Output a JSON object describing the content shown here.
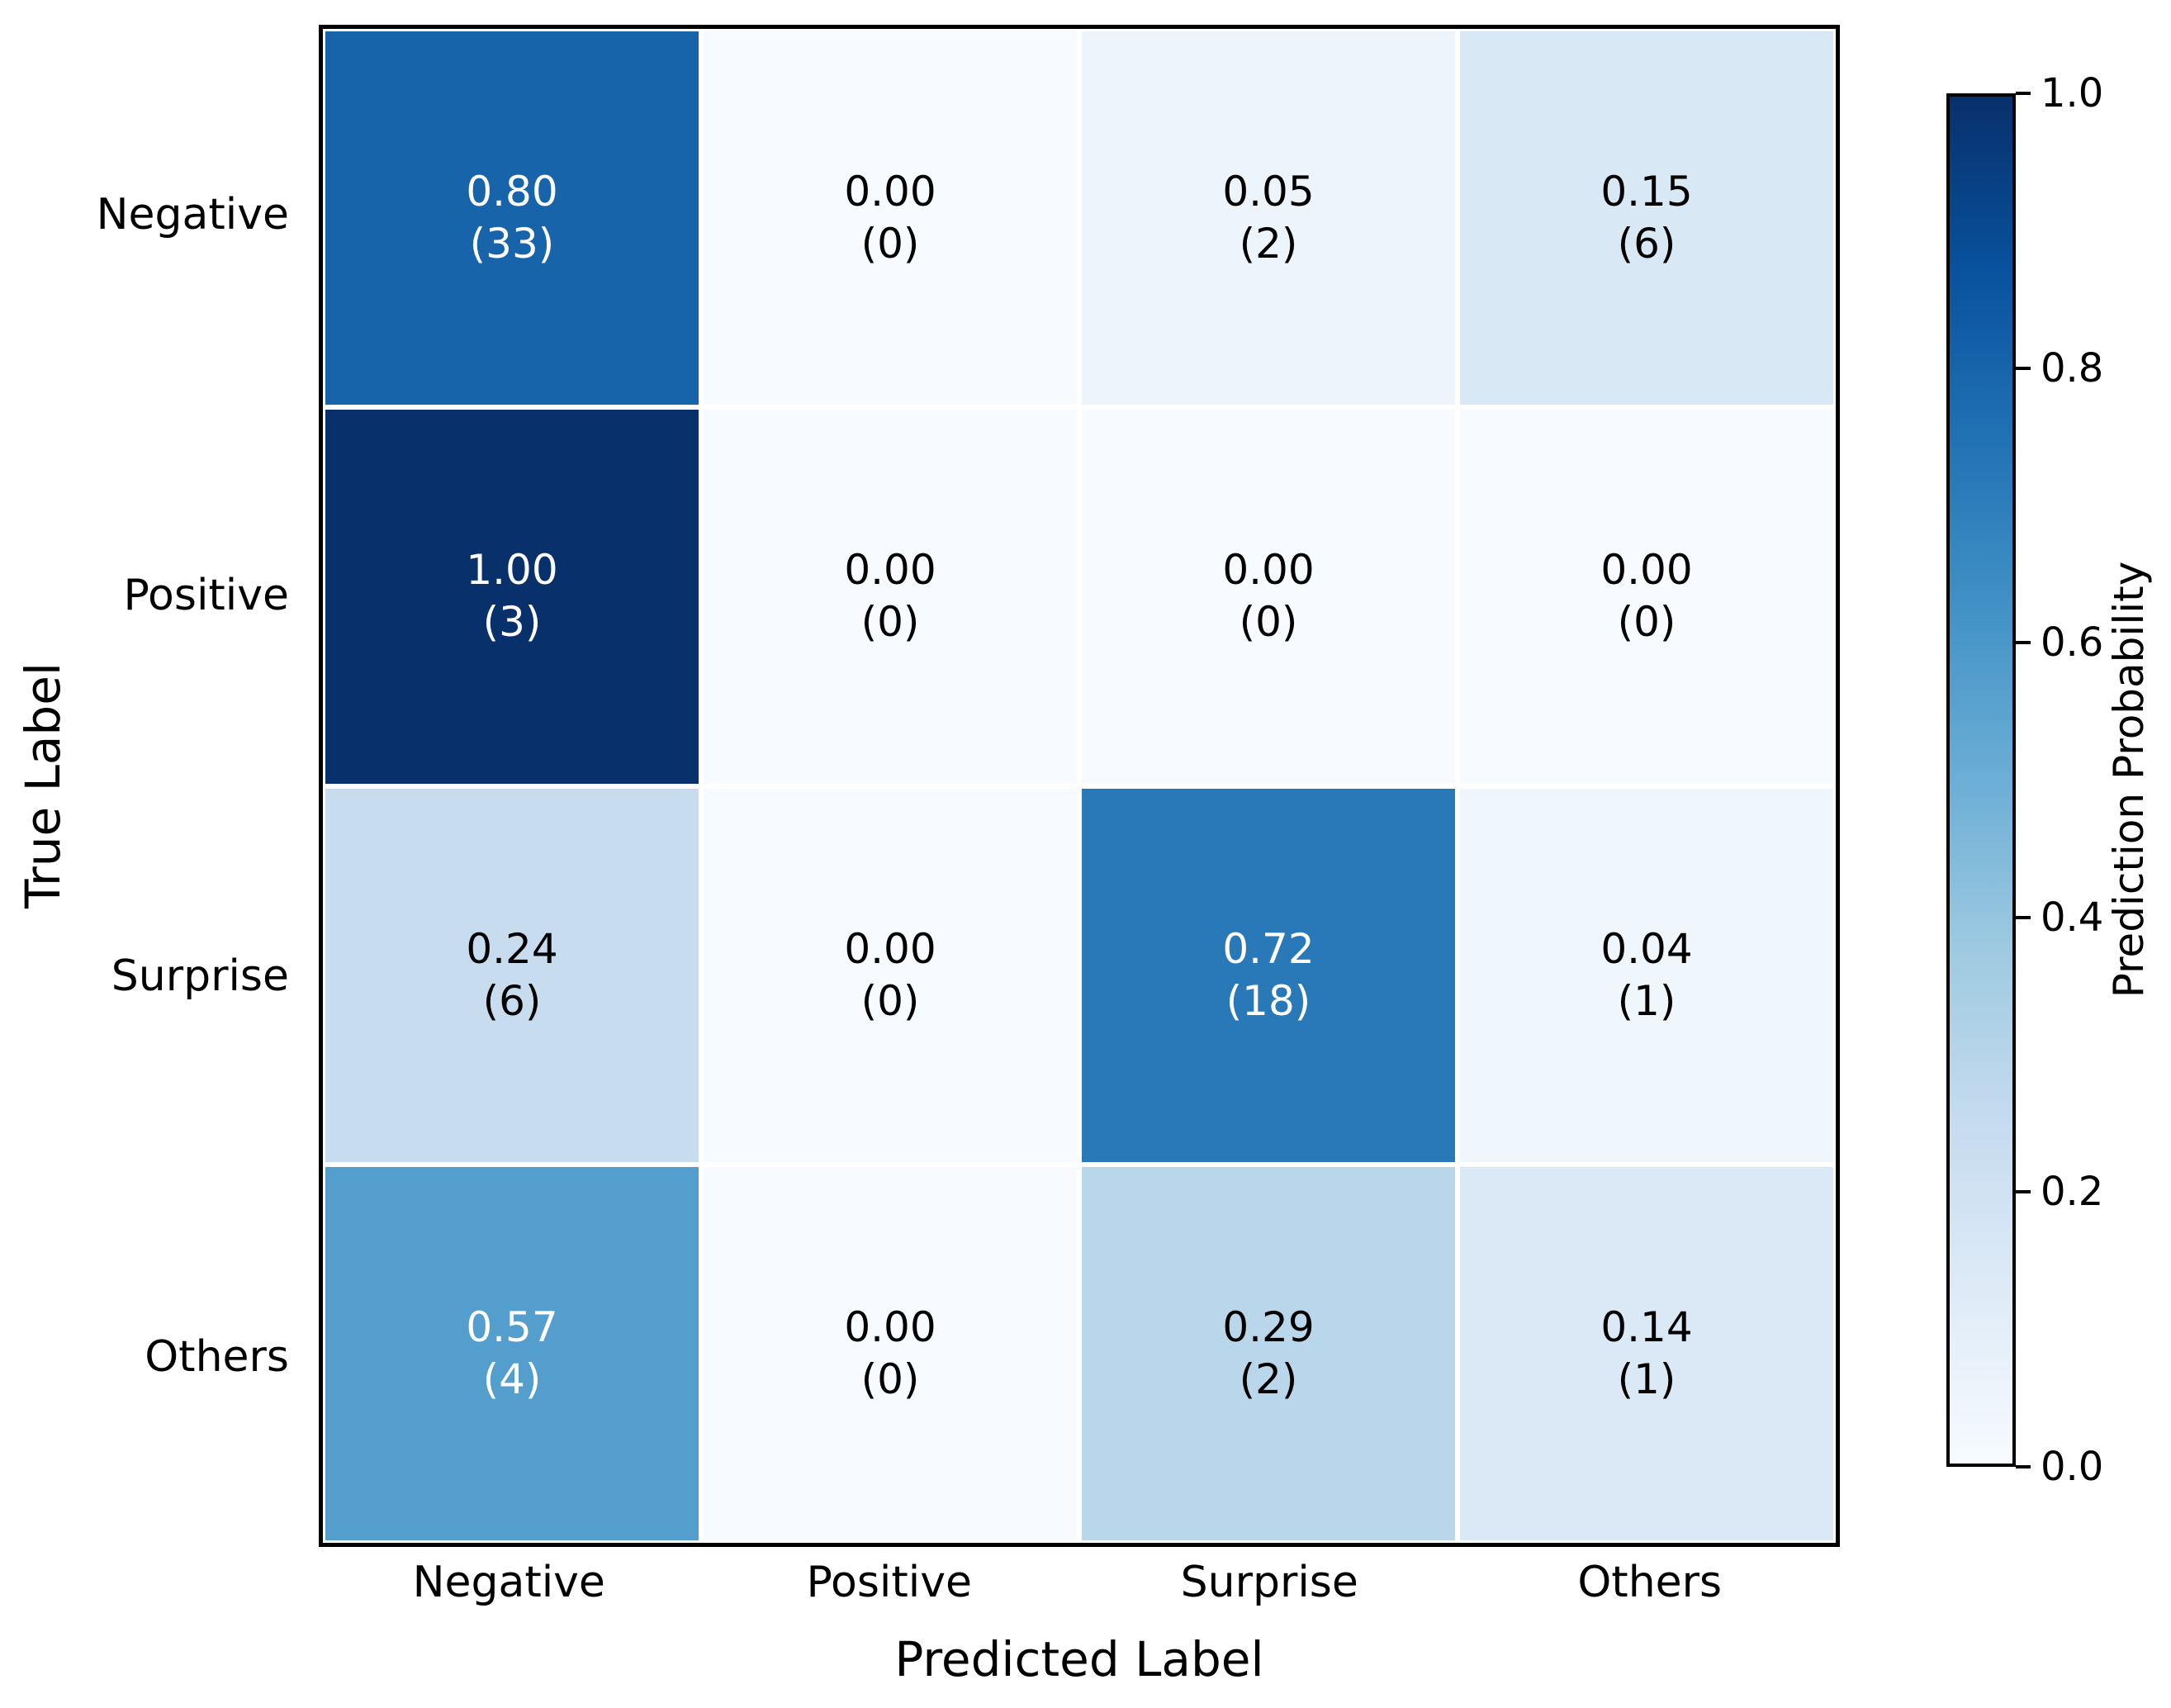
{
  "chart_data": {
    "type": "heatmap",
    "title": "",
    "xlabel": "Predicted Label",
    "ylabel": "True Label",
    "x_categories": [
      "Negative",
      "Positive",
      "Surprise",
      "Others"
    ],
    "y_categories": [
      "Negative",
      "Positive",
      "Surprise",
      "Others"
    ],
    "values": [
      [
        0.8,
        0.0,
        0.05,
        0.15
      ],
      [
        1.0,
        0.0,
        0.0,
        0.0
      ],
      [
        0.24,
        0.0,
        0.72,
        0.04
      ],
      [
        0.57,
        0.0,
        0.29,
        0.14
      ]
    ],
    "counts": [
      [
        33,
        0,
        2,
        6
      ],
      [
        3,
        0,
        0,
        0
      ],
      [
        6,
        0,
        18,
        1
      ],
      [
        4,
        0,
        2,
        1
      ]
    ],
    "value_range": [
      0,
      1
    ],
    "colormap": "Blues",
    "colormap_stops": [
      [
        0.0,
        "#f7fbff"
      ],
      [
        0.125,
        "#deebf7"
      ],
      [
        0.25,
        "#c6dbef"
      ],
      [
        0.375,
        "#9ecae1"
      ],
      [
        0.5,
        "#6baed6"
      ],
      [
        0.625,
        "#4292c6"
      ],
      [
        0.75,
        "#2171b5"
      ],
      [
        0.875,
        "#08519c"
      ],
      [
        1.0,
        "#08306b"
      ]
    ],
    "text_color_threshold": 0.5,
    "text_colors": {
      "light": "#ffffff",
      "dark": "#000000"
    },
    "grid_line_color": "#ffffff",
    "frame_color": "#000000",
    "colorbar_label": "Prediction Probability",
    "colorbar_ticks": [
      1.0,
      0.8,
      0.6,
      0.4,
      0.2,
      0.0
    ],
    "legend_position": "right",
    "grid": false
  }
}
